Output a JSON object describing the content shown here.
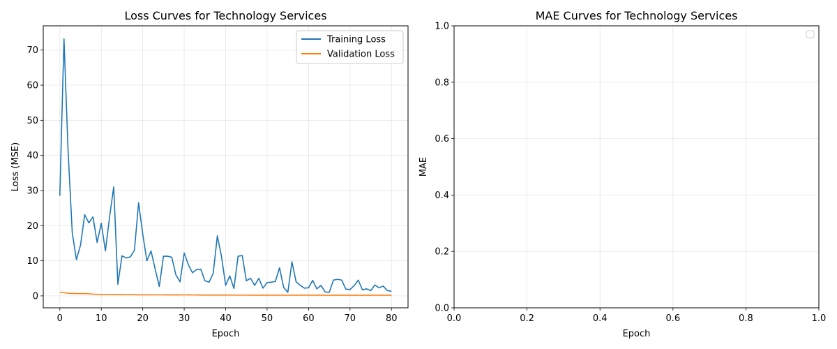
{
  "chart_data": [
    {
      "type": "line",
      "title": "Loss Curves for Technology Services",
      "xlabel": "Epoch",
      "ylabel": "Loss (MSE)",
      "xlim": [
        -4,
        84
      ],
      "ylim": [
        -3.4,
        76.9
      ],
      "xticks": [
        0,
        10,
        20,
        30,
        40,
        50,
        60,
        70,
        80
      ],
      "yticks": [
        0,
        10,
        20,
        30,
        40,
        50,
        60,
        70
      ],
      "grid": true,
      "legend": "top-right",
      "series": [
        {
          "name": "Training Loss",
          "color": "#1f77b4",
          "x": [
            0,
            1,
            2,
            3,
            4,
            5,
            6,
            7,
            8,
            9,
            10,
            11,
            12,
            13,
            14,
            15,
            16,
            17,
            18,
            19,
            20,
            21,
            22,
            23,
            24,
            25,
            26,
            27,
            28,
            29,
            30,
            31,
            32,
            33,
            34,
            35,
            36,
            37,
            38,
            39,
            40,
            41,
            42,
            43,
            44,
            45,
            46,
            47,
            48,
            49,
            50,
            51,
            52,
            53,
            54,
            55,
            56,
            57,
            58,
            59,
            60,
            61,
            62,
            63,
            64,
            65,
            66,
            67,
            68,
            69,
            70,
            71,
            72,
            73,
            74,
            75,
            76,
            77,
            78,
            79,
            80
          ],
          "values": [
            28.5,
            73.2,
            41.0,
            18.0,
            10.3,
            14.5,
            23.1,
            20.8,
            22.5,
            15.2,
            20.7,
            12.8,
            22.5,
            31.0,
            3.3,
            11.4,
            10.8,
            11.1,
            13.0,
            26.5,
            17.6,
            10.0,
            12.8,
            7.6,
            2.7,
            11.3,
            11.3,
            11.0,
            6.0,
            4.0,
            12.2,
            8.9,
            6.6,
            7.5,
            7.6,
            4.3,
            3.9,
            6.4,
            17.1,
            11.2,
            3.0,
            5.7,
            2.1,
            11.3,
            11.5,
            4.3,
            5.0,
            3.0,
            5.0,
            2.2,
            3.8,
            3.9,
            4.1,
            8.0,
            2.4,
            1.0,
            9.7,
            4.0,
            3.0,
            2.2,
            2.3,
            4.4,
            2.0,
            3.0,
            1.1,
            1.0,
            4.5,
            4.7,
            4.5,
            1.9,
            1.8,
            2.9,
            4.5,
            1.7,
            2.0,
            1.5,
            3.1,
            2.3,
            2.8,
            1.5,
            1.3
          ]
        },
        {
          "name": "Validation Loss",
          "color": "#ff7f0e",
          "x": [
            0,
            1,
            2,
            3,
            4,
            5,
            6,
            7,
            8,
            9,
            10,
            11,
            12,
            13,
            14,
            15,
            16,
            17,
            18,
            19,
            20,
            21,
            22,
            23,
            24,
            25,
            26,
            27,
            28,
            29,
            30,
            31,
            32,
            33,
            34,
            35,
            36,
            37,
            38,
            39,
            40,
            41,
            42,
            43,
            44,
            45,
            46,
            47,
            48,
            49,
            50,
            51,
            52,
            53,
            54,
            55,
            56,
            57,
            58,
            59,
            60,
            61,
            62,
            63,
            64,
            65,
            66,
            67,
            68,
            69,
            70,
            71,
            72,
            73,
            74,
            75,
            76,
            77,
            78,
            79,
            80
          ],
          "values": [
            1.1,
            0.9,
            0.75,
            0.7,
            0.65,
            0.65,
            0.65,
            0.6,
            0.5,
            0.45,
            0.42,
            0.4,
            0.4,
            0.38,
            0.37,
            0.36,
            0.35,
            0.34,
            0.33,
            0.32,
            0.32,
            0.31,
            0.31,
            0.3,
            0.3,
            0.3,
            0.29,
            0.29,
            0.29,
            0.29,
            0.3,
            0.29,
            0.28,
            0.27,
            0.26,
            0.25,
            0.25,
            0.25,
            0.25,
            0.24,
            0.24,
            0.24,
            0.23,
            0.23,
            0.23,
            0.23,
            0.22,
            0.22,
            0.22,
            0.22,
            0.22,
            0.22,
            0.22,
            0.21,
            0.21,
            0.21,
            0.21,
            0.21,
            0.21,
            0.21,
            0.21,
            0.21,
            0.21,
            0.2,
            0.2,
            0.2,
            0.2,
            0.2,
            0.2,
            0.2,
            0.2,
            0.2,
            0.2,
            0.2,
            0.2,
            0.2,
            0.21,
            0.2,
            0.2,
            0.2,
            0.2
          ]
        }
      ]
    },
    {
      "type": "line",
      "title": "MAE Curves for Technology Services",
      "xlabel": "Epoch",
      "ylabel": "MAE",
      "xlim": [
        0,
        1
      ],
      "ylim": [
        0,
        1
      ],
      "xticks": [
        "0.0",
        "0.2",
        "0.4",
        "0.6",
        "0.8",
        "1.0"
      ],
      "yticks": [
        "0.0",
        "0.2",
        "0.4",
        "0.6",
        "0.8",
        "1.0"
      ],
      "grid": true,
      "legend": "top-right",
      "series": []
    }
  ]
}
